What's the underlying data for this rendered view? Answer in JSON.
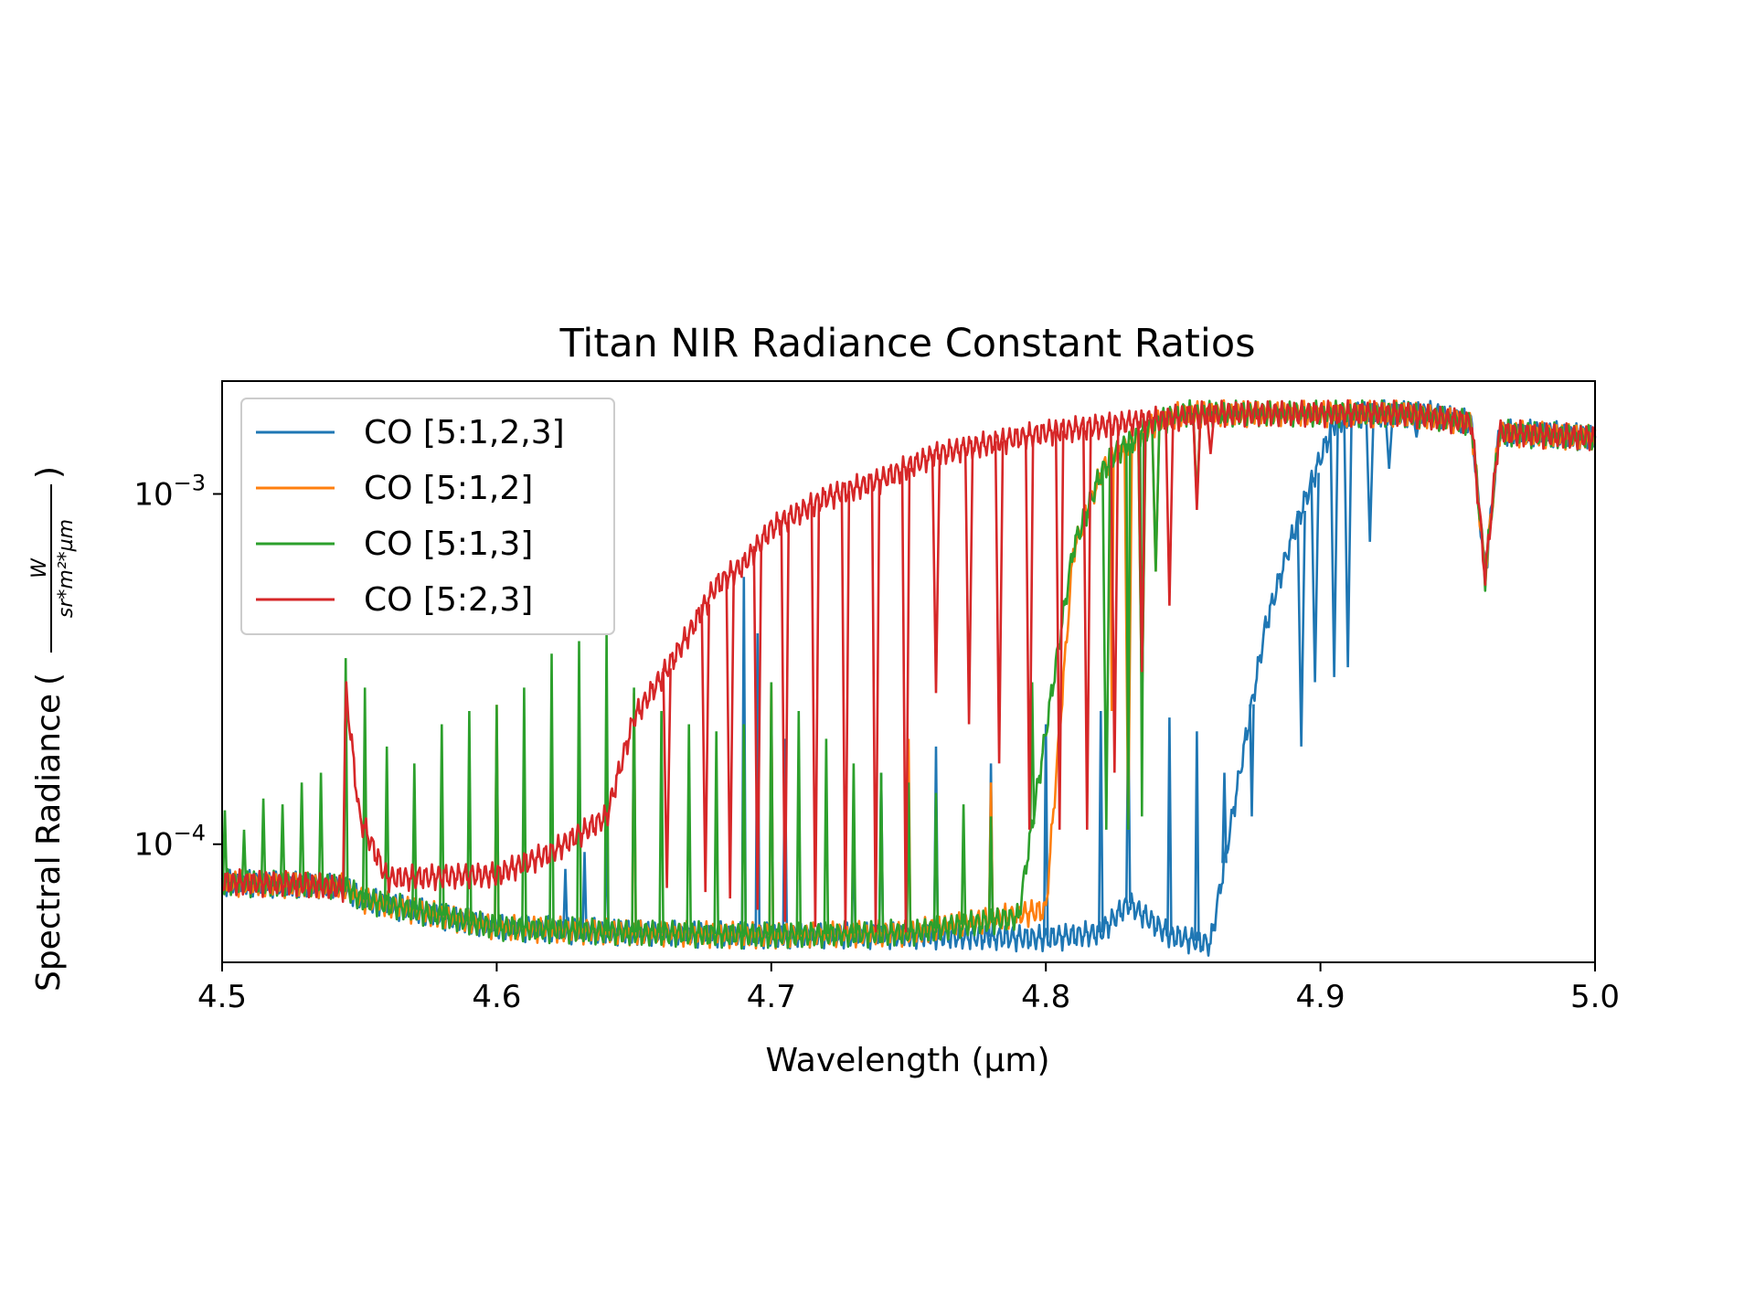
{
  "chart_data": {
    "type": "line",
    "title": "Titan NIR Radiance Constant Ratios",
    "xlabel": "Wavelength (µm)",
    "ylabel": "Spectral Radiance",
    "ylabel_unit_numerator": "W",
    "ylabel_unit_denominator": "sr*m²*µm",
    "xlim": [
      4.5,
      5.0
    ],
    "ylim": [
      4.6e-05,
      0.0021
    ],
    "yscale": "log",
    "grid": false,
    "legend_position": "upper-left",
    "x_ticks": [
      {
        "value": 4.5,
        "label": "4.5"
      },
      {
        "value": 4.6,
        "label": "4.6"
      },
      {
        "value": 4.7,
        "label": "4.7"
      },
      {
        "value": 4.8,
        "label": "4.8"
      },
      {
        "value": 4.9,
        "label": "4.9"
      },
      {
        "value": 5.0,
        "label": "5.0"
      }
    ],
    "y_ticks": [
      {
        "value": 0.0001,
        "base": "10",
        "exp": "−4"
      },
      {
        "value": 0.001,
        "base": "10",
        "exp": "−3"
      }
    ],
    "series": [
      {
        "name": "CO [5:1,2,3]",
        "color": "#1f77b4",
        "points": [
          [
            4.5,
            7.8e-05
          ],
          [
            4.545,
            7.6e-05
          ],
          [
            4.55,
            7e-05
          ],
          [
            4.6,
            5.8e-05
          ],
          [
            4.65,
            5.6e-05
          ],
          [
            4.7,
            5.5e-05
          ],
          [
            4.75,
            5.5e-05
          ],
          [
            4.8,
            5.4e-05
          ],
          [
            4.82,
            5.6e-05
          ],
          [
            4.83,
            6.8e-05
          ],
          [
            4.845,
            5.5e-05
          ],
          [
            4.86,
            5.2e-05
          ],
          [
            4.87,
            0.00015
          ],
          [
            4.88,
            0.00042
          ],
          [
            4.89,
            0.00077
          ],
          [
            4.9,
            0.00127
          ],
          [
            4.905,
            0.0016
          ],
          [
            4.915,
            0.0017
          ],
          [
            4.94,
            0.0017
          ],
          [
            4.955,
            0.0016
          ],
          [
            4.96,
            0.00058
          ],
          [
            4.965,
            0.0015
          ],
          [
            4.98,
            0.0015
          ],
          [
            5.0,
            0.00145
          ]
        ],
        "spikes_up": [
          [
            4.625,
            8.5e-05
          ],
          [
            4.632,
            9.5e-05
          ],
          [
            4.64,
            0.00011
          ],
          [
            4.69,
            0.00058
          ],
          [
            4.695,
            0.0004
          ],
          [
            4.705,
            0.0002
          ],
          [
            4.73,
            0.00011
          ],
          [
            4.74,
            0.00016
          ],
          [
            4.76,
            0.00019
          ],
          [
            4.78,
            0.00017
          ],
          [
            4.8,
            0.00022
          ],
          [
            4.82,
            0.00024
          ],
          [
            4.83,
            0.00026
          ],
          [
            4.845,
            0.00023
          ],
          [
            4.855,
            0.00021
          ],
          [
            4.865,
            0.00016
          ],
          [
            4.875,
            0.00012
          ]
        ],
        "dips": [
          [
            4.893,
            0.00019
          ],
          [
            4.898,
            0.00029
          ],
          [
            4.905,
            0.0003
          ],
          [
            4.91,
            0.00032
          ],
          [
            4.918,
            0.00073
          ],
          [
            4.925,
            0.00118
          ],
          [
            4.935,
            0.00145
          ]
        ]
      },
      {
        "name": "CO [5:1,2]",
        "color": "#ff7f0e",
        "points": [
          [
            4.5,
            7.8e-05
          ],
          [
            4.545,
            7.6e-05
          ],
          [
            4.55,
            7e-05
          ],
          [
            4.6,
            5.8e-05
          ],
          [
            4.65,
            5.6e-05
          ],
          [
            4.7,
            5.5e-05
          ],
          [
            4.75,
            5.6e-05
          ],
          [
            4.8,
            6.5e-05
          ],
          [
            4.81,
            0.00069
          ],
          [
            4.82,
            0.00115
          ],
          [
            4.825,
            0.0013
          ],
          [
            4.84,
            0.0016
          ],
          [
            4.85,
            0.0017
          ],
          [
            4.88,
            0.0017
          ],
          [
            4.93,
            0.0017
          ],
          [
            4.955,
            0.0016
          ],
          [
            4.96,
            0.00058
          ],
          [
            4.965,
            0.0015
          ],
          [
            5.0,
            0.00145
          ]
        ],
        "spikes_up": [
          [
            4.6,
            0.00025
          ],
          [
            4.65,
            0.00027
          ],
          [
            4.7,
            0.00029
          ],
          [
            4.75,
            0.0002
          ],
          [
            4.78,
            0.00015
          ],
          [
            4.824,
            0.00024
          ]
        ],
        "dips": [
          [
            4.83,
            0.00011
          ],
          [
            4.835,
            0.00024
          ],
          [
            4.84,
            0.0006
          ],
          [
            4.855,
            0.00095
          ],
          [
            4.865,
            0.0016
          ]
        ]
      },
      {
        "name": "CO [5:1,3]",
        "color": "#2ca02c",
        "points": [
          [
            4.5,
            7.8e-05
          ],
          [
            4.545,
            7.6e-05
          ],
          [
            4.55,
            7e-05
          ],
          [
            4.6,
            5.8e-05
          ],
          [
            4.65,
            5.6e-05
          ],
          [
            4.7,
            5.5e-05
          ],
          [
            4.75,
            5.6e-05
          ],
          [
            4.79,
            6.2e-05
          ],
          [
            4.8,
            0.00021
          ],
          [
            4.81,
            0.0007
          ],
          [
            4.82,
            0.00115
          ],
          [
            4.825,
            0.0013
          ],
          [
            4.84,
            0.0016
          ],
          [
            4.85,
            0.0017
          ],
          [
            4.88,
            0.0017
          ],
          [
            4.93,
            0.0017
          ],
          [
            4.955,
            0.0016
          ],
          [
            4.96,
            0.00058
          ],
          [
            4.965,
            0.0015
          ],
          [
            5.0,
            0.00145
          ]
        ],
        "spikes_up": [
          [
            4.501,
            0.000125
          ],
          [
            4.508,
            0.00011
          ],
          [
            4.515,
            0.000135
          ],
          [
            4.522,
            0.00013
          ],
          [
            4.529,
            0.00015
          ],
          [
            4.536,
            0.00016
          ],
          [
            4.545,
            0.00034
          ],
          [
            4.552,
            0.00028
          ],
          [
            4.56,
            0.00019
          ],
          [
            4.57,
            0.00017
          ],
          [
            4.58,
            0.00022
          ],
          [
            4.59,
            0.00024
          ],
          [
            4.6,
            0.00025
          ],
          [
            4.61,
            0.00028
          ],
          [
            4.62,
            0.00035
          ],
          [
            4.63,
            0.00038
          ],
          [
            4.64,
            0.0004
          ],
          [
            4.65,
            0.00028
          ],
          [
            4.66,
            0.00024
          ],
          [
            4.67,
            0.00022
          ],
          [
            4.68,
            0.00021
          ],
          [
            4.69,
            0.00022
          ],
          [
            4.7,
            0.00029
          ],
          [
            4.71,
            0.00024
          ],
          [
            4.72,
            0.0002
          ],
          [
            4.73,
            0.00017
          ],
          [
            4.74,
            0.00016
          ],
          [
            4.75,
            0.00015
          ],
          [
            4.76,
            0.00014
          ],
          [
            4.77,
            0.00013
          ],
          [
            4.78,
            0.00012
          ],
          [
            4.795,
            0.00029
          ],
          [
            4.83,
            0.00011
          ],
          [
            4.835,
            0.00012
          ]
        ],
        "dips": [
          [
            4.822,
            0.00011
          ],
          [
            4.835,
            0.00024
          ],
          [
            4.84,
            0.0006
          ],
          [
            4.855,
            0.00095
          ],
          [
            4.865,
            0.0016
          ]
        ]
      },
      {
        "name": "CO [5:2,3]",
        "color": "#d62728",
        "points": [
          [
            4.5,
            7.8e-05
          ],
          [
            4.53,
            7.7e-05
          ],
          [
            4.544,
            7.5e-05
          ],
          [
            4.545,
            0.00028
          ],
          [
            4.55,
            0.00012
          ],
          [
            4.56,
            8e-05
          ],
          [
            4.6,
            8.2e-05
          ],
          [
            4.62,
            9.5e-05
          ],
          [
            4.64,
            0.00012
          ],
          [
            4.65,
            0.00023
          ],
          [
            4.66,
            0.0003
          ],
          [
            4.67,
            0.0004
          ],
          [
            4.68,
            0.00055
          ],
          [
            4.69,
            0.00063
          ],
          [
            4.7,
            0.0008
          ],
          [
            4.72,
            0.00098
          ],
          [
            4.74,
            0.0011
          ],
          [
            4.76,
            0.0013
          ],
          [
            4.78,
            0.0014
          ],
          [
            4.8,
            0.0015
          ],
          [
            4.83,
            0.0016
          ],
          [
            4.86,
            0.0017
          ],
          [
            4.9,
            0.0017
          ],
          [
            4.93,
            0.0017
          ],
          [
            4.955,
            0.0016
          ],
          [
            4.96,
            0.00058
          ],
          [
            4.965,
            0.0015
          ],
          [
            5.0,
            0.00145
          ]
        ],
        "spikes_up": [],
        "dips": [
          [
            4.662,
            7.5e-05
          ],
          [
            4.676,
            7.3e-05
          ],
          [
            4.685,
            7e-05
          ],
          [
            4.695,
            6.5e-05
          ],
          [
            4.705,
            6e-05
          ],
          [
            4.716,
            5.8e-05
          ],
          [
            4.727,
            5.7e-05
          ],
          [
            4.738,
            5.6e-05
          ],
          [
            4.749,
            5.6e-05
          ],
          [
            4.76,
            0.00027
          ],
          [
            4.772,
            0.00022
          ],
          [
            4.783,
            0.00017
          ],
          [
            4.794,
            0.00011
          ],
          [
            4.805,
            0.00011
          ],
          [
            4.815,
            0.00011
          ],
          [
            4.825,
            0.00016
          ],
          [
            4.835,
            0.00031
          ],
          [
            4.845,
            0.00048
          ],
          [
            4.855,
            0.0009
          ],
          [
            4.86,
            0.0013
          ]
        ]
      }
    ]
  }
}
